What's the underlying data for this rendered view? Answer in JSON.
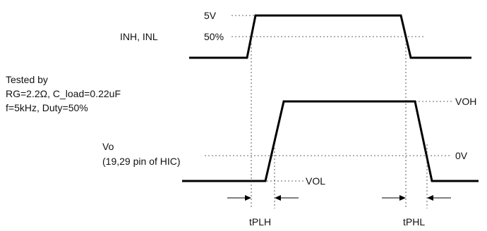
{
  "input_signal": {
    "name": "INH, INL",
    "level_high": "5V",
    "level_mid": "50%"
  },
  "test_conditions": {
    "line1": "Tested by",
    "line2": "RG=2.2Ω,  C_load=0.22uF",
    "line3": "f=5kHz, Duty=50%"
  },
  "output_signal": {
    "name": "Vo",
    "note": "(19,29 pin of HIC)",
    "level_high": "VOH",
    "level_zero": "0V",
    "level_low": "VOL"
  },
  "timing": {
    "rise_delay": "tPLH",
    "fall_delay": "tPHL"
  }
}
